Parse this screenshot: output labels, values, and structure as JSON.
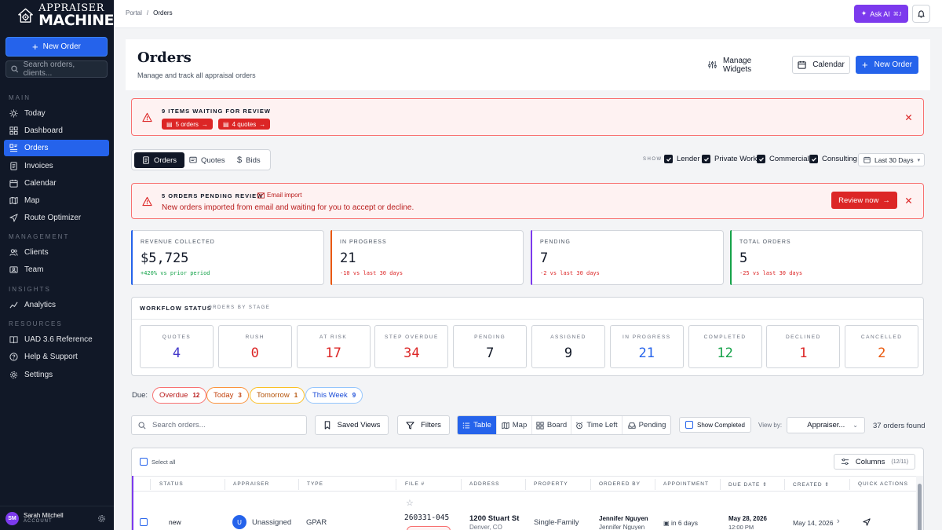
{
  "brand": {
    "line1": "APPRAISER",
    "line2": "MACHINE"
  },
  "sidebar": {
    "new_order_label": "New Order",
    "search_placeholder": "Search orders, clients...",
    "sections": {
      "main": "MAIN",
      "management": "MANAGEMENT",
      "insights": "INSIGHTS",
      "resources": "RESOURCES"
    },
    "items": {
      "today": "Today",
      "dashboard": "Dashboard",
      "orders": "Orders",
      "invoices": "Invoices",
      "calendar": "Calendar",
      "map": "Map",
      "route_optimizer": "Route Optimizer",
      "clients": "Clients",
      "team": "Team",
      "analytics": "Analytics",
      "uad": "UAD 3.6 Reference",
      "help": "Help & Support",
      "settings": "Settings"
    },
    "user": {
      "initials": "SM",
      "name": "Sarah Mitchell",
      "role": "ACCOUNT"
    }
  },
  "topbar": {
    "crumb_root": "Portal",
    "crumb_sep": "/",
    "crumb_current": "Orders",
    "ask_ai": "Ask AI",
    "ask_ai_kbd": "⌘J"
  },
  "header": {
    "title": "Orders",
    "subtitle": "Manage and track all appraisal orders",
    "manage_widgets": "Manage Widgets",
    "calendar": "Calendar",
    "new_order": "New Order"
  },
  "review_alert": {
    "title": "9 ITEMS WAITING FOR REVIEW",
    "orders_pill": "5 orders",
    "quotes_pill": "4 quotes"
  },
  "tabs": {
    "orders": "Orders",
    "quotes": "Quotes",
    "bids": "Bids"
  },
  "filters": {
    "show_label": "SHOW",
    "lender": "Lender",
    "private": "Private Work",
    "commercial": "Commercial",
    "consulting": "Consulting",
    "range": "Last 30 Days"
  },
  "pending_alert": {
    "title": "5 ORDERS PENDING REVIEW",
    "tag": "Email import",
    "message": "New orders imported from email and waiting for you to accept or decline.",
    "button": "Review now"
  },
  "stats": [
    {
      "label": "REVENUE COLLECTED",
      "value": "$5,725",
      "delta": "+420% vs prior period",
      "accent": "#2563eb",
      "delta_color": "#16a34a"
    },
    {
      "label": "IN PROGRESS",
      "value": "21",
      "delta": "-10 vs last 30 days",
      "accent": "#ea580c",
      "delta_color": "#dc2626"
    },
    {
      "label": "PENDING",
      "value": "7",
      "delta": "-2 vs last 30 days",
      "accent": "#7c3aed",
      "delta_color": "#dc2626"
    },
    {
      "label": "TOTAL ORDERS",
      "value": "5",
      "delta": "-25 vs last 30 days",
      "accent": "#16a34a",
      "delta_color": "#dc2626"
    }
  ],
  "workflow": {
    "title": "WORKFLOW STATUS",
    "subtitle": "ORDERS BY STAGE",
    "stages": [
      {
        "label": "QUOTES",
        "count": "4",
        "color": "#4338ca"
      },
      {
        "label": "RUSH",
        "count": "0",
        "color": "#dc2626"
      },
      {
        "label": "AT RISK",
        "count": "17",
        "color": "#dc2626"
      },
      {
        "label": "STEP OVERDUE",
        "count": "34",
        "color": "#dc2626"
      },
      {
        "label": "PENDING",
        "count": "7",
        "color": "#111827"
      },
      {
        "label": "ASSIGNED",
        "count": "9",
        "color": "#111827"
      },
      {
        "label": "IN PROGRESS",
        "count": "21",
        "color": "#2563eb"
      },
      {
        "label": "COMPLETED",
        "count": "12",
        "color": "#16a34a"
      },
      {
        "label": "DECLINED",
        "count": "1",
        "color": "#dc2626"
      },
      {
        "label": "CANCELLED",
        "count": "2",
        "color": "#ea580c"
      }
    ]
  },
  "due": {
    "label": "Due:",
    "overdue": {
      "label": "Overdue",
      "count": "12"
    },
    "today": {
      "label": "Today",
      "count": "3"
    },
    "tomorrow": {
      "label": "Tomorrow",
      "count": "1"
    },
    "week": {
      "label": "This Week",
      "count": "9"
    }
  },
  "toolbar": {
    "search_placeholder": "Search orders...",
    "saved_views": "Saved Views",
    "filters": "Filters",
    "views": {
      "table": "Table",
      "map": "Map",
      "board": "Board",
      "time_left": "Time Left",
      "pending": "Pending"
    },
    "show_completed": "Show Completed",
    "view_by_label": "View by:",
    "view_by_value": "Appraiser...",
    "found": "37 orders found"
  },
  "table": {
    "select_all": "Select all",
    "columns_label": "Columns",
    "columns_count": "(12/11)",
    "headers": {
      "status": "STATUS",
      "appraiser": "APPRAISER",
      "type": "TYPE",
      "file": "FILE #",
      "address": "ADDRESS",
      "property": "PROPERTY",
      "ordered_by": "ORDERED BY",
      "appointment": "APPOINTMENT",
      "due_date": "DUE DATE",
      "created": "CREATED",
      "actions": "QUICK ACTIONS"
    },
    "row": {
      "status": "new",
      "appraiser_initial": "U",
      "appraiser": "Unassigned",
      "type": "GPAR",
      "file": "260331-045",
      "address_line1": "1200 Stuart St",
      "address_line2": "Denver, CO",
      "property": "Single-Family",
      "ordered_by_line1": "Jennifer Nguyen",
      "ordered_by_line2": "Jennifer Nguyen",
      "appointment": "in 6 days",
      "due_date": "May 28, 2026",
      "due_time": "12:00 PM",
      "created": "May 14, 2026"
    }
  }
}
